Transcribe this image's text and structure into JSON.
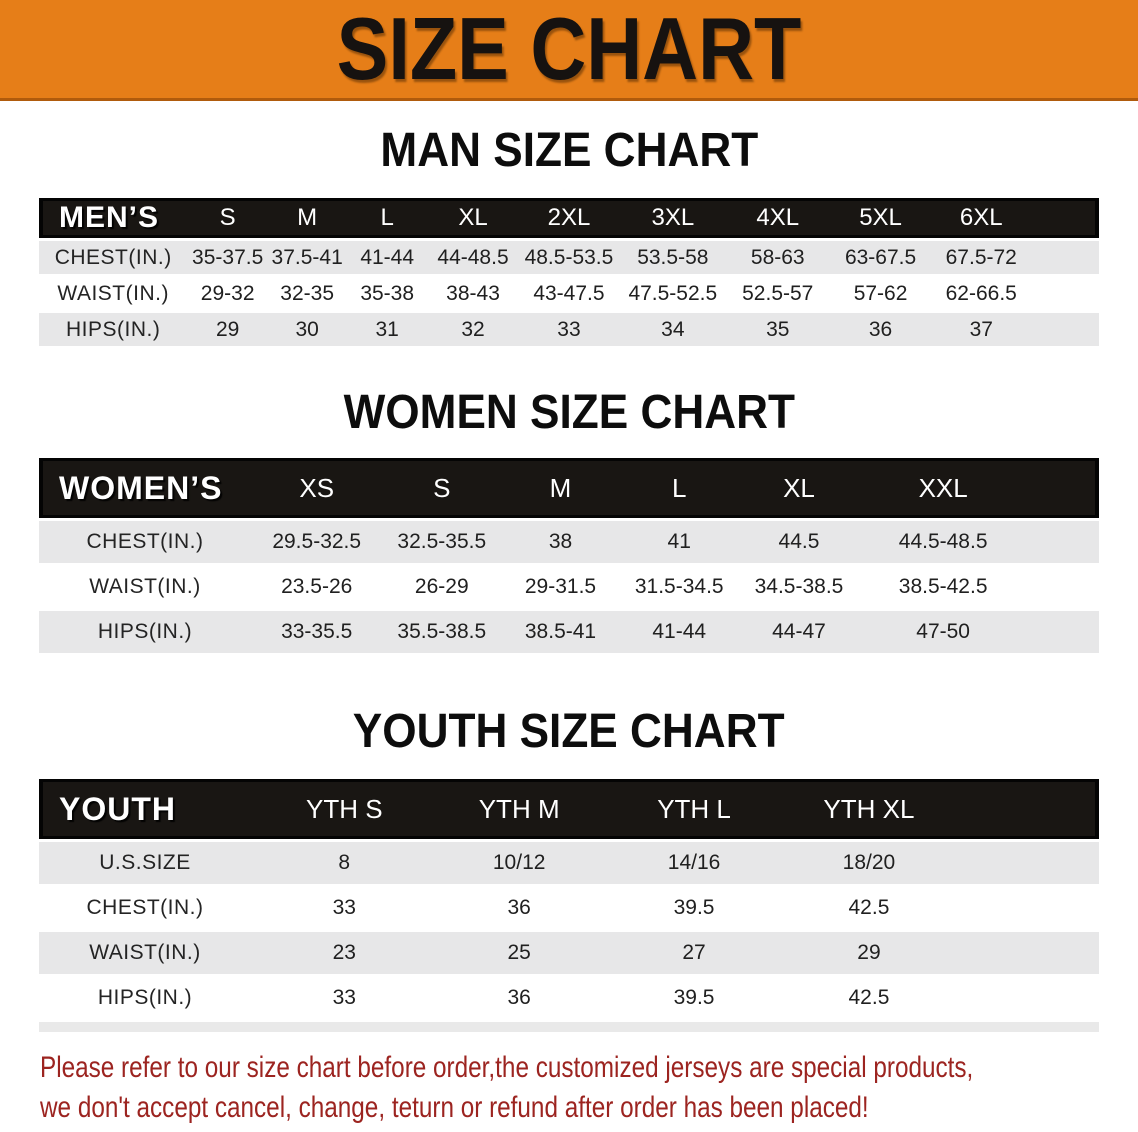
{
  "banner": {
    "title": "SIZE CHART",
    "bg_color": "#e67e18"
  },
  "sections": [
    {
      "heading": "MAN SIZE CHART",
      "group_label": "MEN’S",
      "sizes": [
        "S",
        "M",
        "L",
        "XL",
        "2XL",
        "3XL",
        "4XL",
        "5XL",
        "6XL"
      ],
      "rows": [
        {
          "label": "CHEST(IN.)",
          "values": [
            "35-37.5",
            "37.5-41",
            "41-44",
            "44-48.5",
            "48.5-53.5",
            "53.5-58",
            "58-63",
            "63-67.5",
            "67.5-72"
          ]
        },
        {
          "label": "WAIST(IN.)",
          "values": [
            "29-32",
            "32-35",
            "35-38",
            "38-43",
            "43-47.5",
            "47.5-52.5",
            "52.5-57",
            "57-62",
            "62-66.5"
          ]
        },
        {
          "label": "HIPS(IN.)",
          "values": [
            "29",
            "30",
            "31",
            "32",
            "33",
            "34",
            "35",
            "36",
            "37"
          ]
        }
      ]
    },
    {
      "heading": "WOMEN SIZE CHART",
      "group_label": "WOMEN’S",
      "sizes": [
        "XS",
        "S",
        "M",
        "L",
        "XL",
        "XXL"
      ],
      "rows": [
        {
          "label": "CHEST(IN.)",
          "values": [
            "29.5-32.5",
            "32.5-35.5",
            "38",
            "41",
            "44.5",
            "44.5-48.5"
          ]
        },
        {
          "label": "WAIST(IN.)",
          "values": [
            "23.5-26",
            "26-29",
            "29-31.5",
            "31.5-34.5",
            "34.5-38.5",
            "38.5-42.5"
          ]
        },
        {
          "label": "HIPS(IN.)",
          "values": [
            "33-35.5",
            "35.5-38.5",
            "38.5-41",
            "41-44",
            "44-47",
            "47-50"
          ]
        }
      ]
    },
    {
      "heading": "YOUTH SIZE CHART",
      "group_label": "YOUTH",
      "sizes": [
        "YTH S",
        "YTH M",
        "YTH L",
        "YTH XL"
      ],
      "rows": [
        {
          "label": "U.S.SIZE",
          "values": [
            "8",
            "10/12",
            "14/16",
            "18/20"
          ]
        },
        {
          "label": "CHEST(IN.)",
          "values": [
            "33",
            "36",
            "39.5",
            "42.5"
          ]
        },
        {
          "label": "WAIST(IN.)",
          "values": [
            "23",
            "25",
            "27",
            "29"
          ]
        },
        {
          "label": "HIPS(IN.)",
          "values": [
            "33",
            "36",
            "39.5",
            "42.5"
          ]
        }
      ]
    }
  ],
  "disclaimer": {
    "line1": "Please refer to our size chart before order,the customized jerseys are special products,",
    "line2": "we don't accept cancel, change, teturn or refund after order has been placed!",
    "color": "#9c2420"
  }
}
